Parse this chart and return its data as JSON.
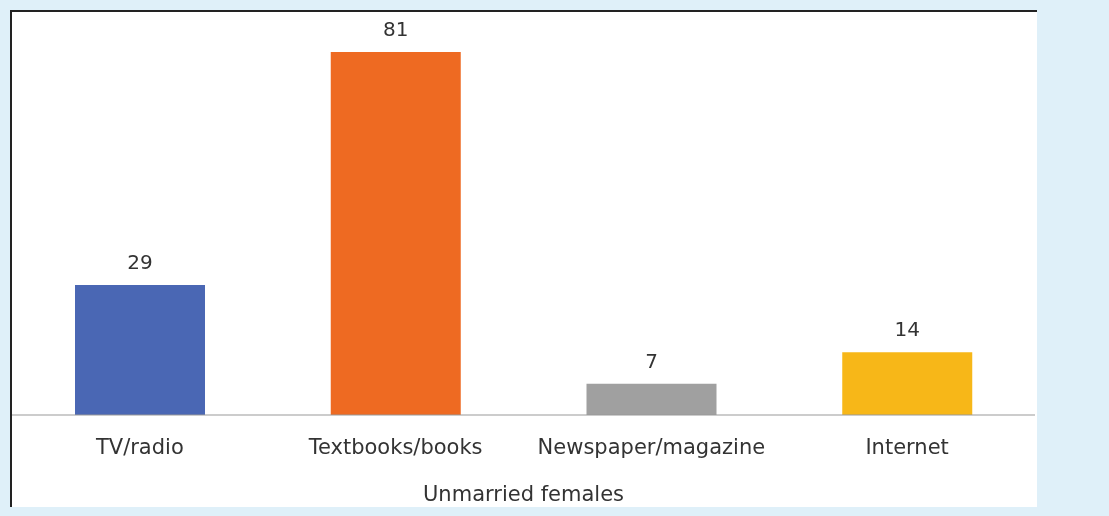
{
  "chart_data": {
    "type": "bar",
    "xlabel": "Unmarried females",
    "categories": [
      "TV/radio",
      "Textbooks/books",
      "Newspaper/magazine",
      "Internet"
    ],
    "values": [
      29,
      81,
      7,
      14
    ],
    "colors": [
      "#4a67b4",
      "#ee6a22",
      "#a0a0a0",
      "#f7b718"
    ],
    "data_labels": true
  }
}
